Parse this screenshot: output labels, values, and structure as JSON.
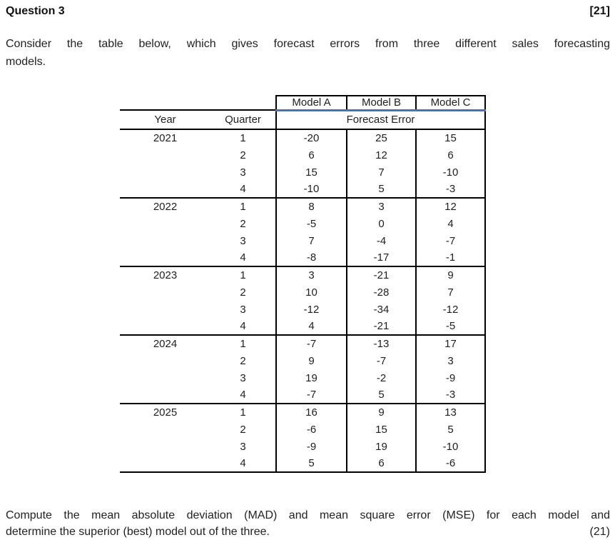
{
  "header": {
    "title": "Question 3",
    "marks": "[21]"
  },
  "intro": {
    "line1": "Consider the table below, which gives forecast errors from three different sales forecasting",
    "line2": "models."
  },
  "table": {
    "accent_color": "#4472C4",
    "model_headers": [
      "Model A",
      "Model B",
      "Model C"
    ],
    "col_headers": {
      "year": "Year",
      "quarter": "Quarter",
      "span": "Forecast Error"
    },
    "rows": [
      {
        "year": "2021",
        "quarter": "1",
        "a": "-20",
        "b": "25",
        "c": "15"
      },
      {
        "year": "",
        "quarter": "2",
        "a": "6",
        "b": "12",
        "c": "6"
      },
      {
        "year": "",
        "quarter": "3",
        "a": "15",
        "b": "7",
        "c": "-10"
      },
      {
        "year": "",
        "quarter": "4",
        "a": "-10",
        "b": "5",
        "c": "-3"
      },
      {
        "year": "2022",
        "quarter": "1",
        "a": "8",
        "b": "3",
        "c": "12"
      },
      {
        "year": "",
        "quarter": "2",
        "a": "-5",
        "b": "0",
        "c": "4"
      },
      {
        "year": "",
        "quarter": "3",
        "a": "7",
        "b": "-4",
        "c": "-7"
      },
      {
        "year": "",
        "quarter": "4",
        "a": "-8",
        "b": "-17",
        "c": "-1"
      },
      {
        "year": "2023",
        "quarter": "1",
        "a": "3",
        "b": "-21",
        "c": "9"
      },
      {
        "year": "",
        "quarter": "2",
        "a": "10",
        "b": "-28",
        "c": "7"
      },
      {
        "year": "",
        "quarter": "3",
        "a": "-12",
        "b": "-34",
        "c": "-12"
      },
      {
        "year": "",
        "quarter": "4",
        "a": "4",
        "b": "-21",
        "c": "-5"
      },
      {
        "year": "2024",
        "quarter": "1",
        "a": "-7",
        "b": "-13",
        "c": "17"
      },
      {
        "year": "",
        "quarter": "2",
        "a": "9",
        "b": "-7",
        "c": "3"
      },
      {
        "year": "",
        "quarter": "3",
        "a": "19",
        "b": "-2",
        "c": "-9"
      },
      {
        "year": "",
        "quarter": "4",
        "a": "-7",
        "b": "5",
        "c": "-3"
      },
      {
        "year": "2025",
        "quarter": "1",
        "a": "16",
        "b": "9",
        "c": "13"
      },
      {
        "year": "",
        "quarter": "2",
        "a": "-6",
        "b": "15",
        "c": "5"
      },
      {
        "year": "",
        "quarter": "3",
        "a": "-9",
        "b": "19",
        "c": "-10"
      },
      {
        "year": "",
        "quarter": "4",
        "a": "5",
        "b": "6",
        "c": "-6"
      }
    ]
  },
  "question": {
    "line1": "Compute the mean absolute deviation (MAD) and mean square error (MSE) for each model and",
    "line2": "determine the superior (best) model out of the three.",
    "marks": "(21)"
  }
}
